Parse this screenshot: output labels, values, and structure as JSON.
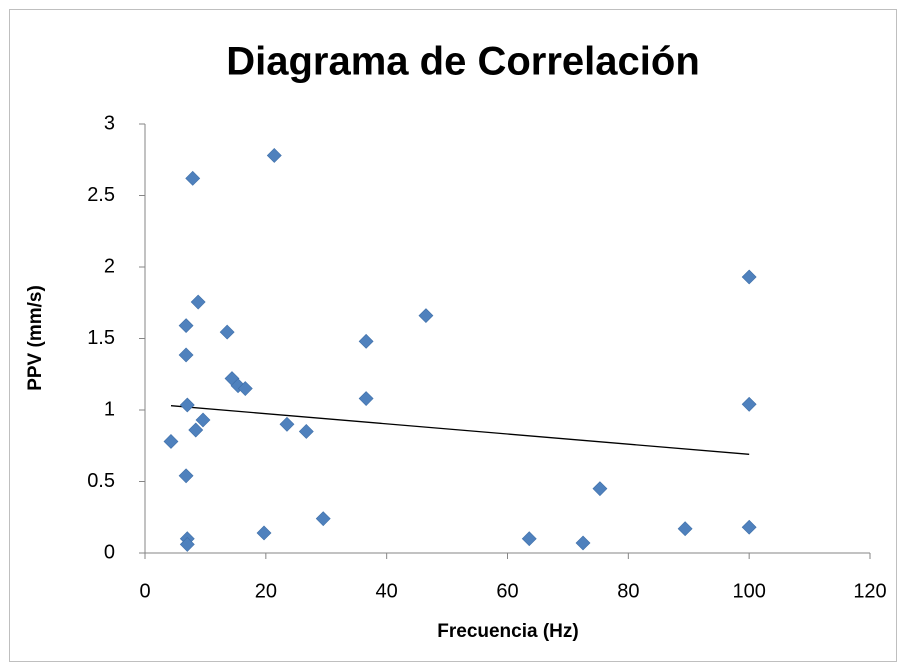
{
  "chart_data": {
    "type": "scatter",
    "title": "Diagrama de Correlación",
    "x_label": "Frecuencia (Hz)",
    "y_label": "PPV (mm/s)",
    "color": "#4f81bd",
    "series": [
      {
        "color": "#4f81bd",
        "x": [
          7.9,
          21.4,
          8.8,
          6.8,
          6.8,
          13.6,
          14.4,
          15.4,
          16.6,
          7,
          9.6,
          8.4,
          4.3,
          23.5,
          26.7,
          6.8,
          7,
          7,
          19.7,
          29.5,
          36.6,
          36.6,
          46.5,
          63.6,
          72.5,
          75.3,
          89.4,
          100,
          100,
          100
        ],
        "values": [
          2.62,
          2.78,
          1.755,
          1.59,
          1.385,
          1.545,
          1.22,
          1.17,
          1.15,
          1.035,
          0.93,
          0.86,
          0.78,
          0.9,
          0.85,
          0.54,
          0.1,
          0.06,
          0.14,
          0.24,
          1.48,
          1.08,
          1.66,
          0.1,
          0.07,
          0.45,
          0.17,
          1.93,
          1.04,
          0.18
        ]
      }
    ],
    "trendline": {
      "x": [
        4.3,
        100
      ],
      "values": [
        1.03,
        0.69
      ]
    },
    "xlim": [
      0,
      120
    ],
    "xticks": [
      0,
      20,
      40,
      60,
      80,
      100,
      120
    ],
    "ylim": [
      0,
      3
    ],
    "yticks": [
      0,
      {
        "value": 0.5,
        "label": "0.5"
      },
      1,
      {
        "value": 1.5,
        "label": "1.5"
      },
      2,
      {
        "value": 2.5,
        "label": "2.5"
      },
      3
    ]
  }
}
